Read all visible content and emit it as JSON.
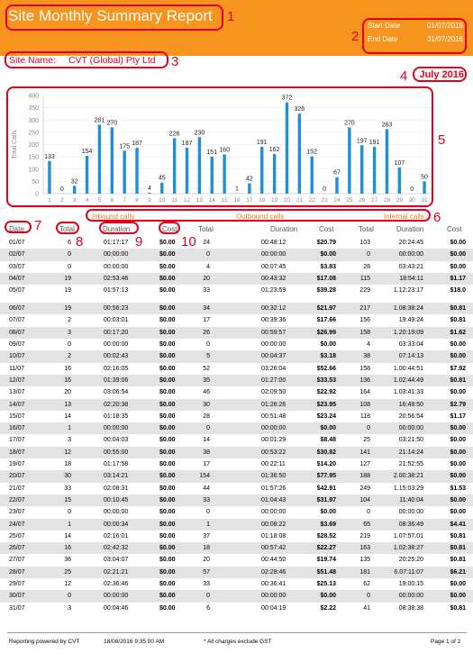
{
  "report": {
    "title": "Site Monthly Summary Report",
    "start_label": "Start Date",
    "start_value": "01/07/2016",
    "end_label": "End Date",
    "end_value": "31/07/2016",
    "site_label": "Site Name:",
    "site_value": "CVT (Global) Pty Ltd",
    "month": "July 2016"
  },
  "annotations": [
    "1",
    "2",
    "3",
    "4",
    "5",
    "6",
    "7",
    "8",
    "9",
    "10"
  ],
  "chart_data": {
    "type": "bar",
    "ylabel": "Total Calls",
    "ylim": [
      0,
      400
    ],
    "yticks": [
      0,
      50,
      100,
      150,
      200,
      250,
      300,
      350,
      400
    ],
    "categories": [
      "1",
      "2",
      "3",
      "4",
      "5",
      "6",
      "7",
      "8",
      "9",
      "10",
      "11",
      "12",
      "13",
      "14",
      "15",
      "16",
      "17",
      "18",
      "19",
      "20",
      "21",
      "22",
      "23",
      "24",
      "25",
      "26",
      "27",
      "28",
      "29",
      "30",
      "31"
    ],
    "values": [
      133,
      0,
      32,
      154,
      281,
      270,
      175,
      187,
      4,
      45,
      226,
      187,
      230,
      151,
      160,
      1,
      42,
      191,
      162,
      372,
      326,
      152,
      0,
      67,
      270,
      197,
      191,
      263,
      107,
      0,
      50
    ],
    "legend": [
      "Inbound calls",
      "Outbound calls",
      "Internal calls"
    ]
  },
  "columns": {
    "date": "Date",
    "in_total": "Total",
    "in_duration": "Duration",
    "in_cost": "Cost",
    "out_total": "Total",
    "out_duration": "Duration",
    "out_cost": "Cost",
    "int_total": "Total",
    "int_duration": "Duration",
    "int_cost": "Cost"
  },
  "rows": [
    [
      "01/07",
      "6",
      "01:17:17",
      "$0.00",
      "24",
      "00:48:12",
      "$20.79",
      "103",
      "20:24:45",
      "$0.00"
    ],
    [
      "02/07",
      "0",
      "00:00:00",
      "$0.00",
      "0",
      "00:00:00",
      "$0.00",
      "0",
      "00:00:00",
      "$0.00"
    ],
    [
      "03/07",
      "0",
      "00:00:00",
      "$0.00",
      "4",
      "00:07:45",
      "$3.83",
      "28",
      "03:43:21",
      "$0.00"
    ],
    [
      "04/07",
      "19",
      "02:53:46",
      "$0.00",
      "20",
      "00:43:32",
      "$17.08",
      "115",
      "18:54:11",
      "$1.17"
    ],
    [
      "05/07",
      "19",
      "01:57:13",
      "$0.00",
      "33",
      "01:23:59",
      "$39.28",
      "229",
      "1.12:23:17",
      "$18.0"
    ],
    [
      "06/07",
      "19",
      "00:56:23",
      "$0.00",
      "34",
      "00:32:12",
      "$21.97",
      "217",
      "1.08:38:24",
      "$0.81"
    ],
    [
      "07/07",
      "2",
      "00:03:01",
      "$0.00",
      "17",
      "00:39:36",
      "$17.66",
      "156",
      "19:49:24",
      "$0.81"
    ],
    [
      "08/07",
      "3",
      "00:17:20",
      "$0.00",
      "26",
      "00:59:57",
      "$26.99",
      "158",
      "1.20:19:09",
      "$1.62"
    ],
    [
      "09/07",
      "0",
      "00:00:00",
      "$0.00",
      "0",
      "00:00:00",
      "$0.00",
      "4",
      "03:33:04",
      "$0.00"
    ],
    [
      "10/07",
      "2",
      "00:02:43",
      "$0.00",
      "5",
      "00:04:37",
      "$3.18",
      "38",
      "07:14:13",
      "$0.00"
    ],
    [
      "11/07",
      "16",
      "02:16:05",
      "$0.00",
      "52",
      "03:26:04",
      "$52.66",
      "158",
      "1.00:44:51",
      "$7.92"
    ],
    [
      "12/07",
      "16",
      "01:39:06",
      "$0.00",
      "35",
      "01:27:00",
      "$33.53",
      "136",
      "1.02:44:49",
      "$0.81"
    ],
    [
      "13/07",
      "20",
      "03:06:54",
      "$0.00",
      "46",
      "02:09:50",
      "$22.92",
      "164",
      "1.03:41:33",
      "$0.00"
    ],
    [
      "14/07",
      "13",
      "02:20:38",
      "$0.00",
      "30",
      "01:26:26",
      "$23.95",
      "108",
      "16:49:50",
      "$2.79"
    ],
    [
      "15/07",
      "14",
      "01:18:35",
      "$0.00",
      "28",
      "00:51:48",
      "$23.24",
      "118",
      "20:56:54",
      "$1.17"
    ],
    [
      "16/07",
      "1",
      "00:00:00",
      "$0.00",
      "0",
      "00:00:00",
      "$0.00",
      "0",
      "00:00:00",
      "$0.00"
    ],
    [
      "17/07",
      "3",
      "00:04:03",
      "$0.00",
      "14",
      "00:01:29",
      "$8.48",
      "25",
      "03:21:50",
      "$0.00"
    ],
    [
      "18/07",
      "12",
      "00:55:00",
      "$0.00",
      "38",
      "00:53:22",
      "$30.82",
      "141",
      "21:14:24",
      "$0.00"
    ],
    [
      "19/07",
      "18",
      "01:17:58",
      "$0.00",
      "17",
      "00:22:11",
      "$14.20",
      "127",
      "21:52:55",
      "$0.00"
    ],
    [
      "20/07",
      "30",
      "03:14:21",
      "$0.00",
      "154",
      "01:36:50",
      "$77.95",
      "188",
      "2.00:38:21",
      "$0.00"
    ],
    [
      "21/07",
      "33",
      "02:08:31",
      "$0.00",
      "44",
      "01:57:26",
      "$42.91",
      "249",
      "1.15:03:29",
      "$1.53"
    ],
    [
      "22/07",
      "15",
      "00:10:45",
      "$0.00",
      "33",
      "01:04:43",
      "$31.97",
      "104",
      "11:40:04",
      "$0.00"
    ],
    [
      "23/07",
      "0",
      "00:00:00",
      "$0.00",
      "0",
      "00:00:00",
      "$0.00",
      "0",
      "00:00:00",
      "$0.00"
    ],
    [
      "24/07",
      "1",
      "00:00:34",
      "$0.00",
      "1",
      "00:08:22",
      "$3.69",
      "65",
      "08:36:49",
      "$4.41"
    ],
    [
      "25/07",
      "14",
      "02:16:01",
      "$0.00",
      "37",
      "01:18:08",
      "$28.52",
      "219",
      "1.07:57:01",
      "$0.81"
    ],
    [
      "26/07",
      "16",
      "02:42:32",
      "$0.00",
      "18",
      "00:57:42",
      "$22.27",
      "163",
      "1.02:38:27",
      "$0.81"
    ],
    [
      "27/07",
      "36",
      "03:04:07",
      "$0.00",
      "20",
      "00:44:50",
      "$19.74",
      "135",
      "20:25:20",
      "$0.81"
    ],
    [
      "28/07",
      "25",
      "02:21:21",
      "$0.00",
      "57",
      "02:28:46",
      "$51.48",
      "181",
      "6.07:11:07",
      "$6.21"
    ],
    [
      "29/07",
      "12",
      "02:36:46",
      "$0.00",
      "33",
      "00:36:41",
      "$25.13",
      "62",
      "19:00:15",
      "$0.00"
    ],
    [
      "30/07",
      "0",
      "00:00:00",
      "$0.00",
      "0",
      "00:00:00",
      "$0.00",
      "0",
      "00:00:00",
      "$0.00"
    ],
    [
      "31/07",
      "3",
      "00:04:46",
      "$0.00",
      "6",
      "00:04:19",
      "$2.22",
      "41",
      "08:38:38",
      "$0.81"
    ]
  ],
  "footer": {
    "powered": "Reporting powered by CVT",
    "generated": "18/08/2016 9:35:00 AM",
    "note": "* All charges exclude GST",
    "page": "Page 1 of 2"
  },
  "colors": {
    "header": "#f7941d",
    "bar": "#1f8fd6",
    "annotation": "#e3001b"
  }
}
